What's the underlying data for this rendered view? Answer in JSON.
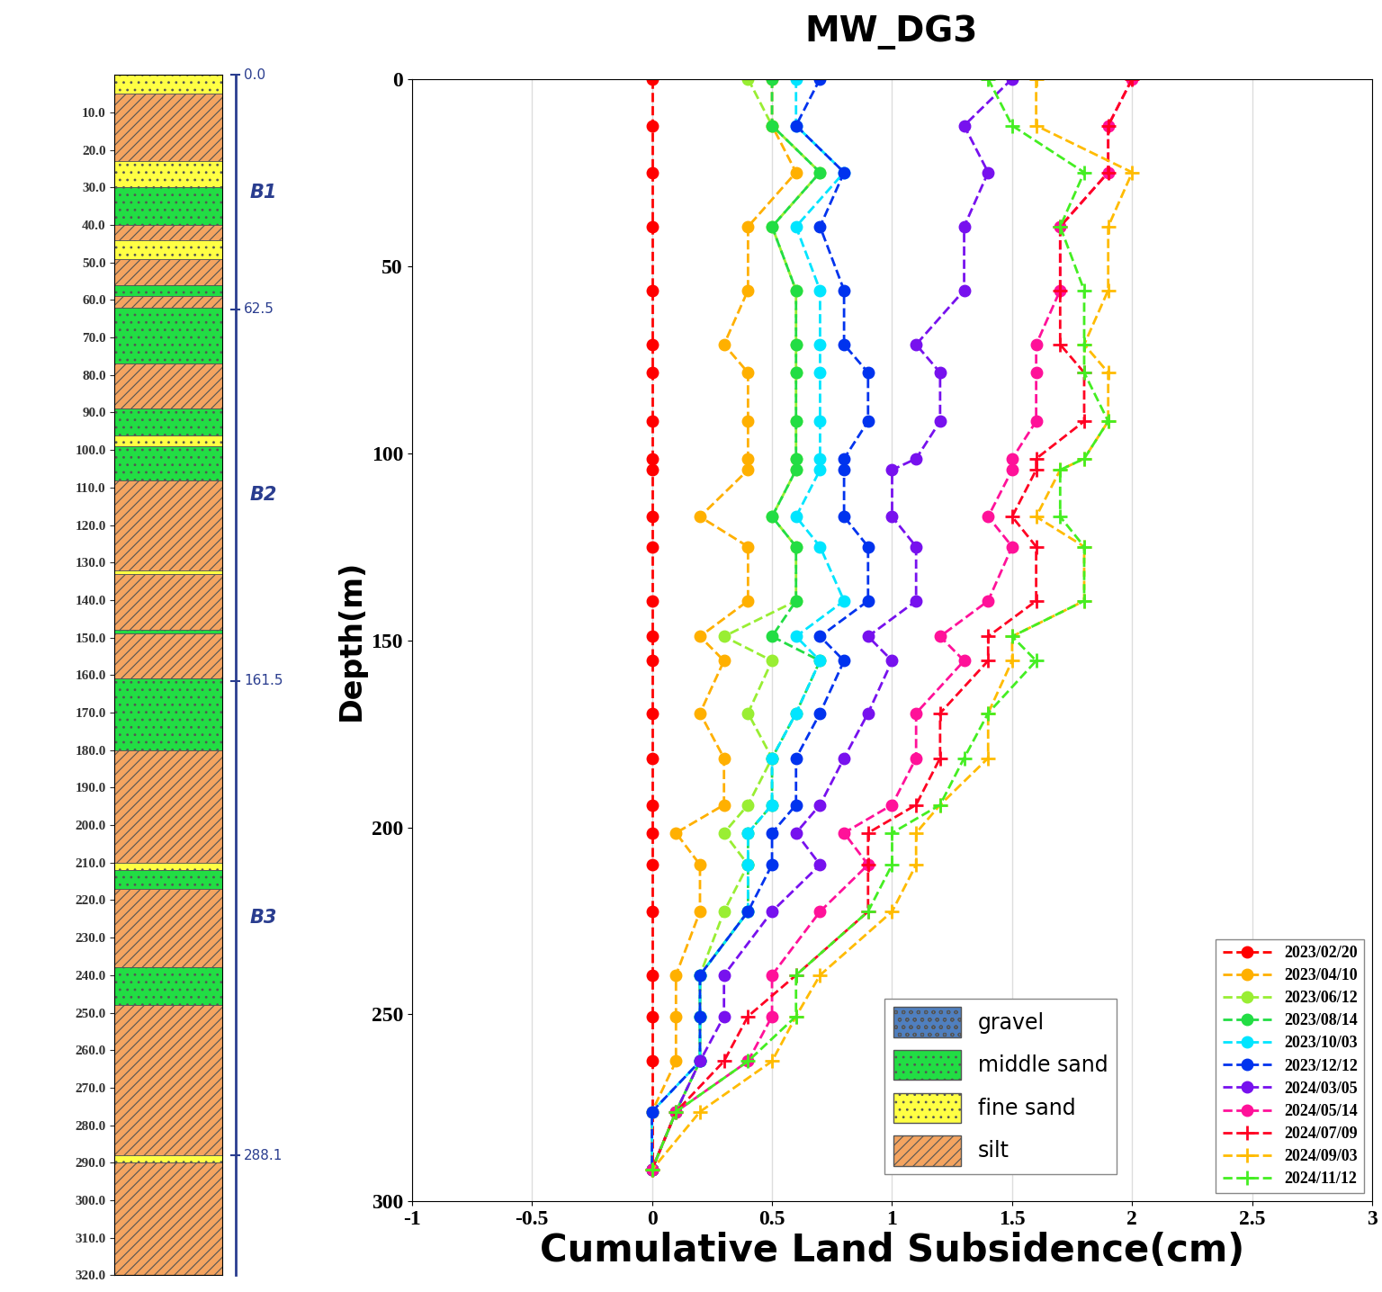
{
  "chart_data": [
    {
      "type": "column",
      "ylim": [
        320,
        0
      ],
      "yticks": [
        {
          "value": 10,
          "label": "10.0"
        },
        {
          "value": 20,
          "label": "20.0"
        },
        {
          "value": 30,
          "label": "30.0"
        },
        {
          "value": 40,
          "label": "40.0"
        },
        {
          "value": 50,
          "label": "50.0"
        },
        {
          "value": 60,
          "label": "60.0"
        },
        {
          "value": 70,
          "label": "70.0"
        },
        {
          "value": 80,
          "label": "80.0"
        },
        {
          "value": 90,
          "label": "90.0"
        },
        {
          "value": 100,
          "label": "100.0"
        },
        {
          "value": 110,
          "label": "110.0"
        },
        {
          "value": 120,
          "label": "120.0"
        },
        {
          "value": 130,
          "label": "130.0"
        },
        {
          "value": 140,
          "label": "140.0"
        },
        {
          "value": 150,
          "label": "150.0"
        },
        {
          "value": 160,
          "label": "160.0"
        },
        {
          "value": 170,
          "label": "170.0"
        },
        {
          "value": 180,
          "label": "180.0"
        },
        {
          "value": 190,
          "label": "190.0"
        },
        {
          "value": 200,
          "label": "200.0"
        },
        {
          "value": 210,
          "label": "210.0"
        },
        {
          "value": 220,
          "label": "220.0"
        },
        {
          "value": 230,
          "label": "230.0"
        },
        {
          "value": 240,
          "label": "240.0"
        },
        {
          "value": 250,
          "label": "250.0"
        },
        {
          "value": 260,
          "label": "260.0"
        },
        {
          "value": 270,
          "label": "270.0"
        },
        {
          "value": 280,
          "label": "280.0"
        },
        {
          "value": 290,
          "label": "290.0"
        },
        {
          "value": 300,
          "label": "300.0"
        },
        {
          "value": 310,
          "label": "310.0"
        },
        {
          "value": 320,
          "label": "320.0"
        }
      ],
      "layers": [
        {
          "top": 0,
          "bottom": 5,
          "lithology": "fine sand"
        },
        {
          "top": 5,
          "bottom": 23,
          "lithology": "silt"
        },
        {
          "top": 23,
          "bottom": 30,
          "lithology": "fine sand"
        },
        {
          "top": 30,
          "bottom": 40,
          "lithology": "middle sand"
        },
        {
          "top": 40,
          "bottom": 44,
          "lithology": "silt"
        },
        {
          "top": 44,
          "bottom": 49,
          "lithology": "fine sand"
        },
        {
          "top": 49,
          "bottom": 56,
          "lithology": "silt"
        },
        {
          "top": 56,
          "bottom": 59,
          "lithology": "middle sand"
        },
        {
          "top": 59,
          "bottom": 62,
          "lithology": "silt"
        },
        {
          "top": 62,
          "bottom": 77,
          "lithology": "middle sand"
        },
        {
          "top": 77,
          "bottom": 89,
          "lithology": "silt"
        },
        {
          "top": 89,
          "bottom": 96,
          "lithology": "middle sand"
        },
        {
          "top": 96,
          "bottom": 99,
          "lithology": "fine sand"
        },
        {
          "top": 99,
          "bottom": 108,
          "lithology": "middle sand"
        },
        {
          "top": 108,
          "bottom": 132,
          "lithology": "silt"
        },
        {
          "top": 132,
          "bottom": 133,
          "lithology": "fine sand"
        },
        {
          "top": 133,
          "bottom": 148,
          "lithology": "silt"
        },
        {
          "top": 148,
          "bottom": 149,
          "lithology": "middle sand"
        },
        {
          "top": 149,
          "bottom": 161,
          "lithology": "silt"
        },
        {
          "top": 161,
          "bottom": 180,
          "lithology": "middle sand"
        },
        {
          "top": 180,
          "bottom": 210,
          "lithology": "silt"
        },
        {
          "top": 210,
          "bottom": 212,
          "lithology": "fine sand"
        },
        {
          "top": 212,
          "bottom": 217,
          "lithology": "middle sand"
        },
        {
          "top": 217,
          "bottom": 238,
          "lithology": "silt"
        },
        {
          "top": 238,
          "bottom": 248,
          "lithology": "middle sand"
        },
        {
          "top": 248,
          "bottom": 288,
          "lithology": "silt"
        },
        {
          "top": 288,
          "bottom": 290,
          "lithology": "fine sand"
        },
        {
          "top": 290,
          "bottom": 320,
          "lithology": "silt"
        }
      ],
      "boundaries": [
        {
          "value": 0,
          "label": "0.0"
        },
        {
          "value": 62.5,
          "label": "62.5"
        },
        {
          "value": 161.5,
          "label": "161.5"
        },
        {
          "value": 288.1,
          "label": "288.1"
        }
      ],
      "units": [
        {
          "name": "B1",
          "top": 0,
          "bottom": 62.5
        },
        {
          "name": "B2",
          "top": 62.5,
          "bottom": 161.5
        },
        {
          "name": "B3",
          "top": 161.5,
          "bottom": 288.1
        }
      ],
      "legend_entries": [
        {
          "name": "gravel",
          "color": "#4f7fbf"
        },
        {
          "name": "middle sand",
          "color": "#22dd44"
        },
        {
          "name": "fine sand",
          "color": "#ffff44"
        },
        {
          "name": "silt",
          "color": "#f4a460"
        }
      ]
    },
    {
      "type": "line",
      "title": "MW_DG3",
      "xlabel": "Cumulative Land Subsidence(cm)",
      "ylabel": "Depth(m)",
      "xlim": [
        -1,
        3
      ],
      "xticks": [
        -1,
        -0.5,
        0,
        0.5,
        1,
        1.5,
        2,
        2.5,
        3
      ],
      "ylim": [
        300,
        0
      ],
      "yticks": [
        0,
        50,
        100,
        150,
        200,
        250,
        300
      ],
      "grid": true,
      "legend": "lower right",
      "y": [
        0,
        12.5,
        25,
        39.5,
        56.5,
        71,
        78.5,
        91.5,
        101.5,
        104.5,
        117,
        125,
        139.5,
        149,
        155.5,
        169.5,
        181.5,
        194,
        201.5,
        210,
        222.5,
        239.5,
        250.5,
        262.5,
        276,
        291.5
      ],
      "series": [
        {
          "name": "2023/02/20",
          "color": "#ff0000",
          "marker": "circle",
          "line_style": "dashed",
          "values": [
            0,
            0,
            0,
            0,
            0,
            0,
            0,
            0,
            0,
            0,
            0,
            0,
            0,
            0,
            0,
            0,
            0,
            0,
            0,
            0,
            0,
            0,
            0,
            0,
            0,
            0
          ]
        },
        {
          "name": "2023/04/10",
          "color": "#ffb000",
          "marker": "circle",
          "line_style": "dashed",
          "values": [
            0.5,
            0.5,
            0.6,
            0.4,
            0.4,
            0.3,
            0.4,
            0.4,
            0.4,
            0.4,
            0.2,
            0.4,
            0.4,
            0.2,
            0.3,
            0.2,
            0.3,
            0.3,
            0.1,
            0.2,
            0.2,
            0.1,
            0.1,
            0.1,
            0,
            0
          ]
        },
        {
          "name": "2023/06/12",
          "color": "#99ee33",
          "marker": "circle",
          "line_style": "dashed",
          "values": [
            0.4,
            0.5,
            0.7,
            0.5,
            0.6,
            0.6,
            0.6,
            0.6,
            0.6,
            0.6,
            0.5,
            0.6,
            0.6,
            0.3,
            0.5,
            0.4,
            0.5,
            0.4,
            0.3,
            0.4,
            0.3,
            0.2,
            0.2,
            0.2,
            0.1,
            0
          ]
        },
        {
          "name": "2023/08/14",
          "color": "#22dd44",
          "marker": "circle",
          "line_style": "dashed",
          "values": [
            0.5,
            0.5,
            0.7,
            0.5,
            0.6,
            0.6,
            0.6,
            0.6,
            0.6,
            0.6,
            0.5,
            0.6,
            0.6,
            0.5,
            0.7,
            0.6,
            0.5,
            0.5,
            0.4,
            0.4,
            0.4,
            0.2,
            0.2,
            0.2,
            0.1,
            0
          ]
        },
        {
          "name": "2023/10/03",
          "color": "#00e5ff",
          "marker": "circle",
          "line_style": "dashed",
          "values": [
            0.6,
            0.6,
            0.8,
            0.6,
            0.7,
            0.7,
            0.7,
            0.7,
            0.7,
            0.7,
            0.6,
            0.7,
            0.8,
            0.6,
            0.7,
            0.6,
            0.5,
            0.5,
            0.4,
            0.4,
            0.4,
            0.2,
            0.2,
            0.2,
            0,
            0
          ]
        },
        {
          "name": "2023/12/12",
          "color": "#0033ee",
          "marker": "circle",
          "line_style": "dashed",
          "values": [
            0.7,
            0.6,
            0.8,
            0.7,
            0.8,
            0.8,
            0.9,
            0.9,
            0.8,
            0.8,
            0.8,
            0.9,
            0.9,
            0.7,
            0.8,
            0.7,
            0.6,
            0.6,
            0.5,
            0.5,
            0.4,
            0.2,
            0.2,
            0.2,
            0,
            0
          ]
        },
        {
          "name": "2024/03/05",
          "color": "#7711ee",
          "marker": "circle",
          "line_style": "dashed",
          "values": [
            1.5,
            1.3,
            1.4,
            1.3,
            1.3,
            1.1,
            1.2,
            1.2,
            1.1,
            1.0,
            1.0,
            1.1,
            1.1,
            0.9,
            1.0,
            0.9,
            0.8,
            0.7,
            0.6,
            0.7,
            0.5,
            0.3,
            0.3,
            0.2,
            0.1,
            0
          ]
        },
        {
          "name": "2024/05/14",
          "color": "#ff1199",
          "marker": "circle",
          "line_style": "dashed",
          "values": [
            2.0,
            1.9,
            1.9,
            1.7,
            1.7,
            1.6,
            1.6,
            1.6,
            1.5,
            1.5,
            1.4,
            1.5,
            1.4,
            1.2,
            1.3,
            1.1,
            1.1,
            1.0,
            0.8,
            0.9,
            0.7,
            0.5,
            0.5,
            0.4,
            0.1,
            0
          ]
        },
        {
          "name": "2024/07/09",
          "color": "#ff0022",
          "marker": "plus",
          "line_style": "dashed",
          "values": [
            2.0,
            1.9,
            1.9,
            1.7,
            1.7,
            1.7,
            1.8,
            1.8,
            1.6,
            1.6,
            1.5,
            1.6,
            1.6,
            1.4,
            1.4,
            1.2,
            1.2,
            1.1,
            0.9,
            0.9,
            0.9,
            0.6,
            0.4,
            0.3,
            0.1,
            0
          ]
        },
        {
          "name": "2024/09/03",
          "color": "#ffbb00",
          "marker": "plus",
          "line_style": "dashed",
          "values": [
            1.6,
            1.6,
            2.0,
            1.9,
            1.9,
            1.8,
            1.9,
            1.9,
            1.8,
            1.7,
            1.6,
            1.8,
            1.8,
            1.5,
            1.5,
            1.4,
            1.4,
            1.2,
            1.1,
            1.1,
            1.0,
            0.7,
            0.6,
            0.5,
            0.2,
            0
          ]
        },
        {
          "name": "2024/11/12",
          "color": "#44ee22",
          "marker": "plus",
          "line_style": "dashed",
          "values": [
            1.4,
            1.5,
            1.8,
            1.7,
            1.8,
            1.8,
            1.8,
            1.9,
            1.8,
            1.7,
            1.7,
            1.8,
            1.8,
            1.5,
            1.6,
            1.4,
            1.3,
            1.2,
            1.0,
            1.0,
            0.9,
            0.6,
            0.6,
            0.4,
            0.1,
            0
          ]
        }
      ]
    }
  ]
}
